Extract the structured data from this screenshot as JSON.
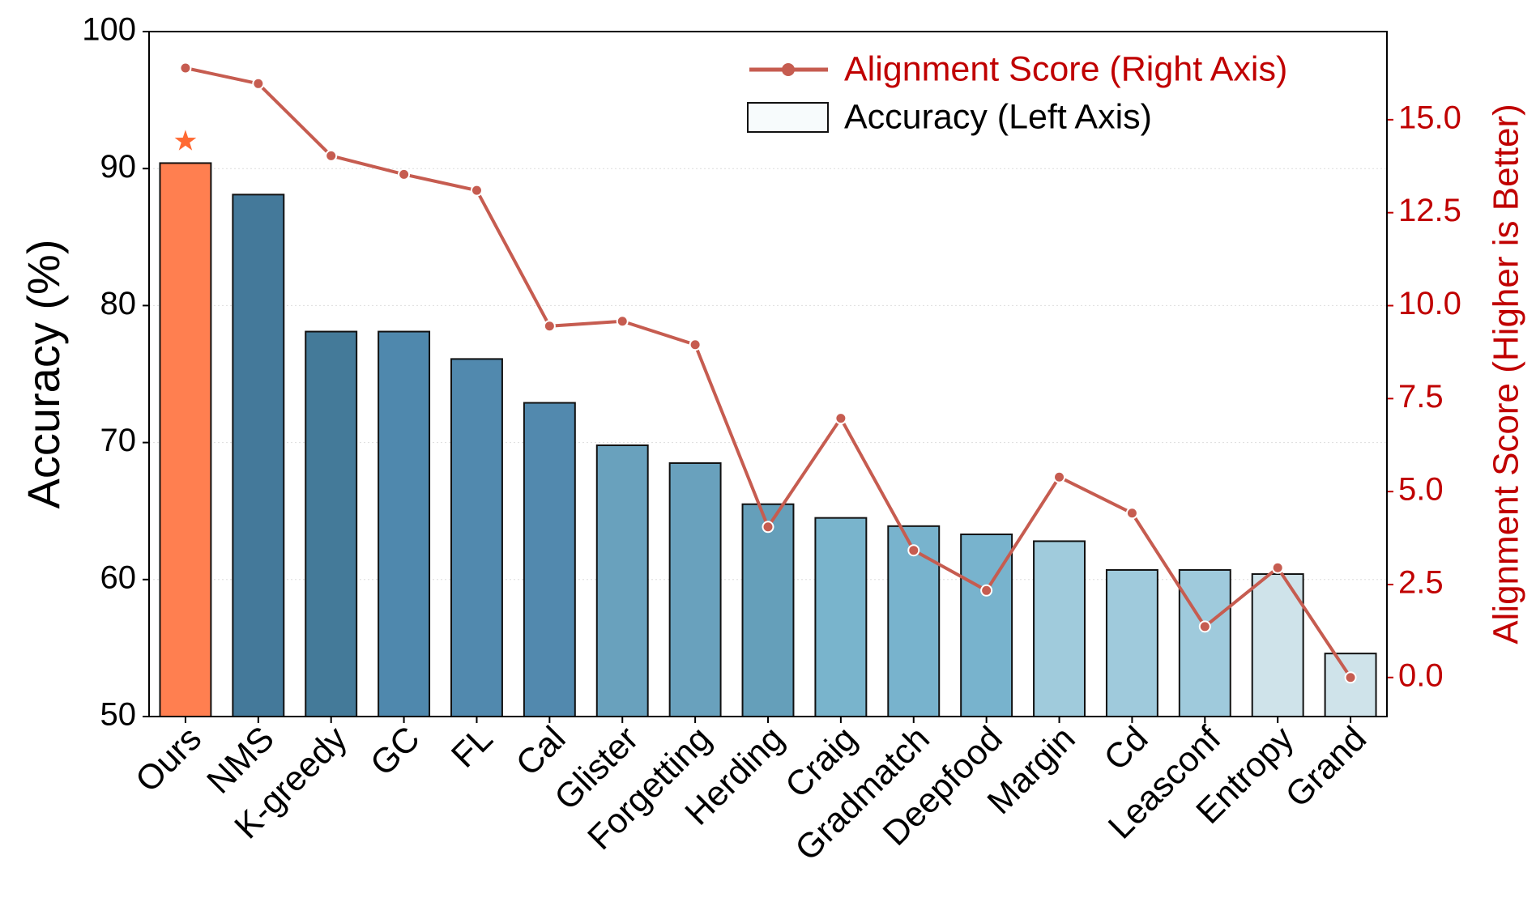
{
  "chart_data": {
    "type": "bar",
    "ylabel": "Accuracy (%)",
    "y2label": "Alignment Score (Higher is Better)",
    "categories": [
      "Ours",
      "NMS",
      "K-greedy",
      "GC",
      "FL",
      "Cal",
      "Glister",
      "Forgetting",
      "Herding",
      "Craig",
      "Gradmatch",
      "Deepfood",
      "Margin",
      "Cd",
      "Leasconf",
      "Entropy",
      "Grand"
    ],
    "series": [
      {
        "name": "Accuracy (Left Axis)",
        "type": "bar",
        "colors": [
          "#ff7f50",
          "#44799a",
          "#447a99",
          "#4f88ad",
          "#5189ae",
          "#5289ae",
          "#69a1bd",
          "#69a1bd",
          "#659fba",
          "#79b4cc",
          "#78b3cd",
          "#78b3cd",
          "#a0cbdc",
          "#9fcadc",
          "#9fcadc",
          "#cfe3ea",
          "#cfe3ea"
        ],
        "values": [
          90.4,
          88.1,
          78.1,
          78.1,
          76.1,
          72.9,
          69.8,
          68.5,
          65.5,
          64.5,
          63.9,
          63.3,
          62.8,
          60.7,
          60.7,
          60.4,
          54.6
        ]
      },
      {
        "name": "Alignment Score (Right Axis)",
        "type": "line",
        "axis": "y2",
        "color": "#c65c50",
        "values": [
          16.39,
          15.97,
          14.03,
          13.53,
          13.1,
          9.45,
          9.58,
          8.95,
          4.05,
          6.97,
          3.42,
          2.34,
          5.39,
          4.42,
          1.37,
          2.95,
          0.0
        ]
      }
    ],
    "ylim": [
      50,
      100
    ],
    "yticks": [
      50,
      60,
      70,
      80,
      90,
      100
    ],
    "y2lim": [
      -1.05,
      17.37
    ],
    "y2ticks": [
      {
        "value": 0,
        "label": "0.0"
      },
      {
        "value": 2.5,
        "label": "2.5"
      },
      {
        "value": 5,
        "label": "5.0"
      },
      {
        "value": 7.5,
        "label": "7.5"
      },
      {
        "value": 10,
        "label": "10.0"
      },
      {
        "value": 12.5,
        "label": "12.5"
      },
      {
        "value": 15,
        "label": "15.0"
      }
    ],
    "y2color": "#c00000",
    "grid": true,
    "legend": "upper right"
  }
}
